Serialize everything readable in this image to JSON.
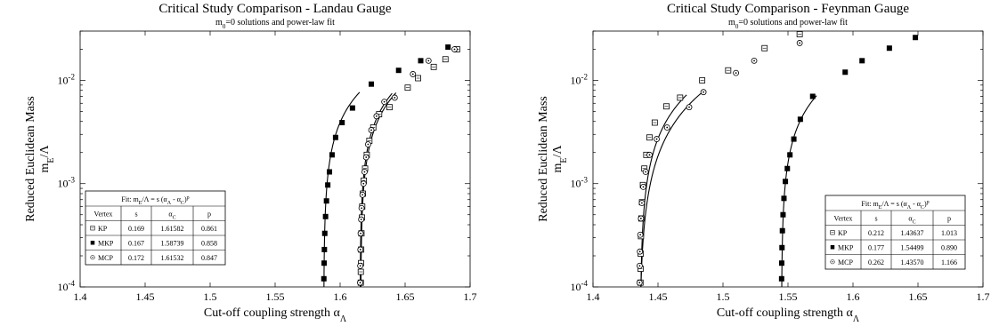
{
  "chart_data": [
    {
      "type": "scatter",
      "title": "Critical Study Comparison - Landau Gauge",
      "subtitle_main": "m",
      "subtitle_sub": "0",
      "subtitle_rest": "=0 solutions and power-law fit",
      "xlabel_main": "Cut-off coupling strength α",
      "xlabel_sub": "Λ",
      "ylabel_line1": "Reduced Euclidean Mass",
      "ylabel_line2_main": "m",
      "ylabel_line2_sub": "E",
      "ylabel_line2_rest": "/Λ",
      "xlim": [
        1.4,
        1.7
      ],
      "ylim": [
        0.0001,
        0.03
      ],
      "yscale": "log",
      "grid": false,
      "x_ticks": [
        "1.4",
        "1.45",
        "1.5",
        "1.55",
        "1.6",
        "1.65",
        "1.7"
      ],
      "x_tick_values": [
        1.4,
        1.45,
        1.5,
        1.55,
        1.6,
        1.65,
        1.7
      ],
      "y_ticks": [
        {
          "value": 0.0001,
          "base": "10",
          "exp": "-4"
        },
        {
          "value": 0.001,
          "base": "10",
          "exp": "-3"
        },
        {
          "value": 0.01,
          "base": "10",
          "exp": "-2"
        }
      ],
      "fit_table": {
        "title_pre": "Fit: m",
        "title_sub1": "E",
        "title_mid": "/Λ = s (α",
        "title_sub2": "Λ",
        "title_mid2": " - α",
        "title_sub3": "C",
        "title_post": ")",
        "title_sup": "p",
        "headers": [
          "Vertex",
          "s",
          "α",
          "p"
        ],
        "alpha_header_sub": "C",
        "rows": [
          {
            "marker": "open-square",
            "name": "KP",
            "s": "0.169",
            "alpha_c": "1.61582",
            "p": "0.861"
          },
          {
            "marker": "filled-square",
            "name": "MKP",
            "s": "0.167",
            "alpha_c": "1.58739",
            "p": "0.858"
          },
          {
            "marker": "open-circle",
            "name": "MCP",
            "s": "0.172",
            "alpha_c": "1.61532",
            "p": "0.847"
          }
        ]
      },
      "series": [
        {
          "name": "KP",
          "marker": "open-square",
          "fit": {
            "s": 0.169,
            "alpha_c": 1.61582,
            "p": 0.861,
            "x_end": 1.643
          },
          "points": [
            [
              1.6159,
              0.00011
            ],
            [
              1.6159,
              0.00014
            ],
            [
              1.6161,
              0.00017
            ],
            [
              1.6162,
              0.00023
            ],
            [
              1.6164,
              0.00033
            ],
            [
              1.6168,
              0.00047
            ],
            [
              1.617,
              0.0006
            ],
            [
              1.6175,
              0.0008
            ],
            [
              1.6182,
              0.00107
            ],
            [
              1.6192,
              0.0014
            ],
            [
              1.6205,
              0.0019
            ],
            [
              1.6225,
              0.0026
            ],
            [
              1.6255,
              0.0035
            ],
            [
              1.63,
              0.0047
            ],
            [
              1.638,
              0.0055
            ],
            [
              1.652,
              0.0085
            ],
            [
              1.66,
              0.0105
            ],
            [
              1.672,
              0.0135
            ],
            [
              1.681,
              0.016
            ],
            [
              1.69,
              0.02
            ]
          ]
        },
        {
          "name": "MKP",
          "marker": "filled-square",
          "fit": {
            "s": 0.167,
            "alpha_c": 1.58739,
            "p": 0.858,
            "x_end": 1.615
          },
          "points": [
            [
              1.5875,
              0.00012
            ],
            [
              1.5877,
              0.00017
            ],
            [
              1.5879,
              0.00023
            ],
            [
              1.5882,
              0.00033
            ],
            [
              1.5888,
              0.00048
            ],
            [
              1.5895,
              0.00068
            ],
            [
              1.5905,
              0.00097
            ],
            [
              1.5918,
              0.0013
            ],
            [
              1.5938,
              0.0019
            ],
            [
              1.5965,
              0.0028
            ],
            [
              1.6015,
              0.0039
            ],
            [
              1.6095,
              0.0054
            ],
            [
              1.624,
              0.0092
            ],
            [
              1.645,
              0.0125
            ],
            [
              1.662,
              0.0155
            ],
            [
              1.683,
              0.021
            ]
          ]
        },
        {
          "name": "MCP",
          "marker": "open-circle",
          "fit": {
            "s": 0.172,
            "alpha_c": 1.61532,
            "p": 0.847,
            "x_end": 1.64
          },
          "points": [
            [
              1.6154,
              0.00011
            ],
            [
              1.6155,
              0.00016
            ],
            [
              1.6156,
              0.00023
            ],
            [
              1.6158,
              0.00033
            ],
            [
              1.6162,
              0.00045
            ],
            [
              1.6165,
              0.00058
            ],
            [
              1.6172,
              0.00078
            ],
            [
              1.618,
              0.001
            ],
            [
              1.6188,
              0.0013
            ],
            [
              1.62,
              0.0018
            ],
            [
              1.6215,
              0.0024
            ],
            [
              1.624,
              0.0033
            ],
            [
              1.628,
              0.0045
            ],
            [
              1.634,
              0.0062
            ],
            [
              1.642,
              0.0068
            ],
            [
              1.656,
              0.0115
            ],
            [
              1.668,
              0.0155
            ],
            [
              1.688,
              0.02
            ]
          ]
        }
      ]
    },
    {
      "type": "scatter",
      "title": "Critical Study Comparison - Feynman Gauge",
      "subtitle_main": "m",
      "subtitle_sub": "0",
      "subtitle_rest": "=0 solutions and power-law fit",
      "xlabel_main": "Cut-off coupling strength α",
      "xlabel_sub": "Λ",
      "ylabel_line1": "Reduced Euclidean Mass",
      "ylabel_line2_main": "m",
      "ylabel_line2_sub": "E",
      "ylabel_line2_rest": "/Λ",
      "xlim": [
        1.4,
        1.7
      ],
      "ylim": [
        0.0001,
        0.03
      ],
      "yscale": "log",
      "grid": false,
      "x_ticks": [
        "1.4",
        "1.45",
        "1.5",
        "1.55",
        "1.6",
        "1.65",
        "1.7"
      ],
      "x_tick_values": [
        1.4,
        1.45,
        1.5,
        1.55,
        1.6,
        1.65,
        1.7
      ],
      "y_ticks": [
        {
          "value": 0.0001,
          "base": "10",
          "exp": "-4"
        },
        {
          "value": 0.001,
          "base": "10",
          "exp": "-3"
        },
        {
          "value": 0.01,
          "base": "10",
          "exp": "-2"
        }
      ],
      "fit_table": {
        "title_pre": "Fit: m",
        "title_sub1": "E",
        "title_mid": "/Λ = s (α",
        "title_sub2": "Λ",
        "title_mid2": " - α",
        "title_sub3": "C",
        "title_post": ")",
        "title_sup": "p",
        "headers": [
          "Vertex",
          "s",
          "α",
          "p"
        ],
        "alpha_header_sub": "C",
        "rows": [
          {
            "marker": "open-square",
            "name": "KP",
            "s": "0.212",
            "alpha_c": "1.43637",
            "p": "1.013"
          },
          {
            "marker": "filled-square",
            "name": "MKP",
            "s": "0.177",
            "alpha_c": "1.54499",
            "p": "0.890"
          },
          {
            "marker": "open-circle",
            "name": "MCP",
            "s": "0.262",
            "alpha_c": "1.43570",
            "p": "1.166"
          }
        ]
      },
      "series": [
        {
          "name": "KP",
          "marker": "open-square",
          "fit": {
            "s": 0.212,
            "alpha_c": 1.43637,
            "p": 1.013,
            "x_end": 1.472
          },
          "points": [
            [
              1.4365,
              0.00011
            ],
            [
              1.4366,
              0.00015
            ],
            [
              1.4367,
              0.00021
            ],
            [
              1.4369,
              0.00031
            ],
            [
              1.4372,
              0.00046
            ],
            [
              1.4377,
              0.00066
            ],
            [
              1.4384,
              0.00097
            ],
            [
              1.4395,
              0.0014
            ],
            [
              1.441,
              0.0019
            ],
            [
              1.4435,
              0.0028
            ],
            [
              1.4475,
              0.0039
            ],
            [
              1.4565,
              0.0056
            ],
            [
              1.467,
              0.0068
            ],
            [
              1.484,
              0.01
            ],
            [
              1.504,
              0.0125
            ],
            [
              1.532,
              0.0205
            ],
            [
              1.559,
              0.028
            ]
          ]
        },
        {
          "name": "MKP",
          "marker": "filled-square",
          "fit": {
            "s": 0.177,
            "alpha_c": 1.54499,
            "p": 0.89,
            "x_end": 1.572
          },
          "points": [
            [
              1.5451,
              0.00012
            ],
            [
              1.5452,
              0.00017
            ],
            [
              1.5454,
              0.00024
            ],
            [
              1.5457,
              0.00035
            ],
            [
              1.5462,
              0.0005
            ],
            [
              1.5469,
              0.00072
            ],
            [
              1.548,
              0.00105
            ],
            [
              1.5495,
              0.0014
            ],
            [
              1.5515,
              0.0019
            ],
            [
              1.5545,
              0.0027
            ],
            [
              1.5595,
              0.0042
            ],
            [
              1.569,
              0.007
            ],
            [
              1.594,
              0.012
            ],
            [
              1.607,
              0.0155
            ],
            [
              1.628,
              0.0205
            ],
            [
              1.648,
              0.026
            ]
          ]
        },
        {
          "name": "MCP",
          "marker": "open-circle",
          "fit": {
            "s": 0.262,
            "alpha_c": 1.4357,
            "p": 1.166,
            "x_end": 1.486
          },
          "points": [
            [
              1.4358,
              0.00011
            ],
            [
              1.4359,
              0.00016
            ],
            [
              1.4361,
              0.00022
            ],
            [
              1.4364,
              0.00032
            ],
            [
              1.4369,
              0.00046
            ],
            [
              1.4376,
              0.00065
            ],
            [
              1.4387,
              0.00093
            ],
            [
              1.4405,
              0.0013
            ],
            [
              1.4435,
              0.0019
            ],
            [
              1.449,
              0.0027
            ],
            [
              1.457,
              0.0035
            ],
            [
              1.474,
              0.0055
            ],
            [
              1.485,
              0.0077
            ],
            [
              1.51,
              0.0118
            ],
            [
              1.524,
              0.0155
            ],
            [
              1.559,
              0.023
            ]
          ]
        }
      ]
    }
  ]
}
